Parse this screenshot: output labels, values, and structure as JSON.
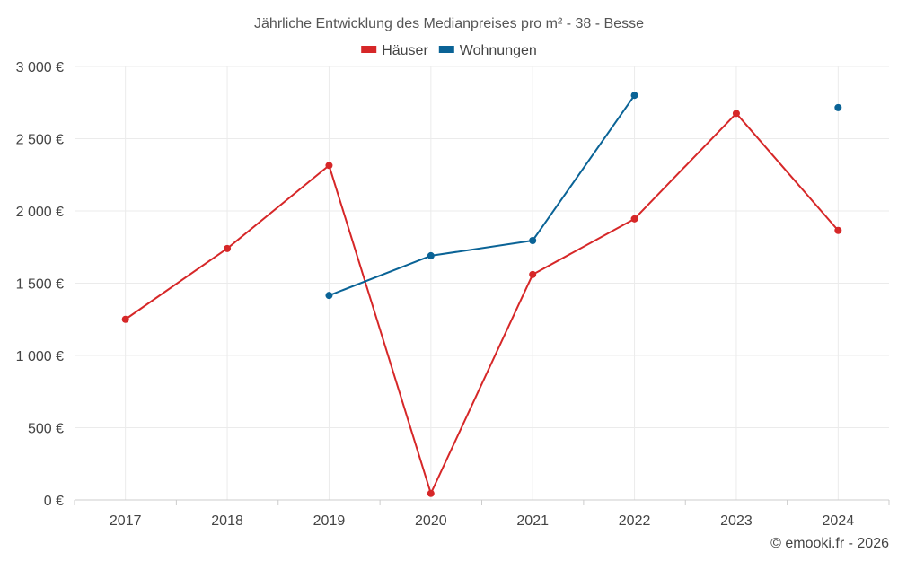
{
  "chart_data": {
    "type": "line",
    "title": "Jährliche Entwicklung des Medianpreises pro m² - 38 - Besse",
    "categories": [
      "2017",
      "2018",
      "2019",
      "2020",
      "2021",
      "2022",
      "2023",
      "2024"
    ],
    "y_ticks": [
      "0 €",
      "500 €",
      "1 000 €",
      "1 500 €",
      "2 000 €",
      "2 500 €",
      "3 000 €"
    ],
    "ylim": [
      0,
      3000
    ],
    "series": [
      {
        "name": "Häuser",
        "color": "#d62728",
        "values": [
          1250,
          1740,
          2315,
          45,
          1560,
          1945,
          2675,
          1865
        ]
      },
      {
        "name": "Wohnungen",
        "color": "#0a6396",
        "values": [
          null,
          null,
          1415,
          1690,
          1795,
          2800,
          null,
          2715
        ]
      }
    ],
    "legend_position": "top-center",
    "grid": true,
    "credit": "© emooki.fr - 2026"
  }
}
